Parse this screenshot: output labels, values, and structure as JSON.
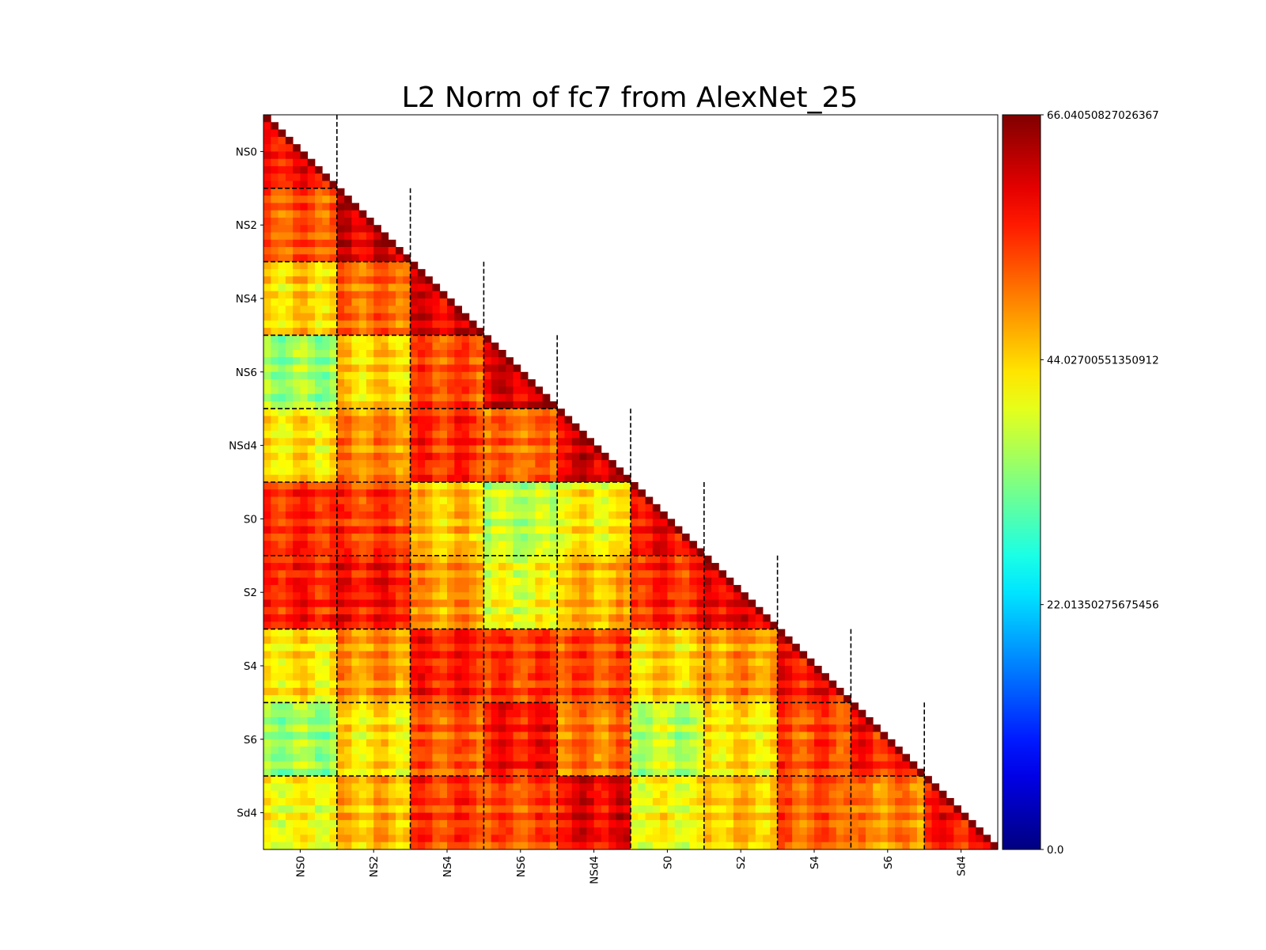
{
  "chart_data": {
    "type": "heatmap",
    "title": "L2 Norm of fc7 from AlexNet_25",
    "layout": "lower-triangular",
    "cells_per_group": 10,
    "groups": [
      "NS0",
      "NS2",
      "NS4",
      "NS6",
      "NSd4",
      "S0",
      "S2",
      "S4",
      "S6",
      "Sd4"
    ],
    "block_values": [
      [
        57
      ],
      [
        52,
        60
      ],
      [
        44,
        51,
        59
      ],
      [
        35,
        44,
        53,
        60
      ],
      [
        43,
        49,
        55,
        51,
        60
      ],
      [
        55,
        54,
        45,
        37,
        42,
        58
      ],
      [
        56,
        57,
        48,
        40,
        46,
        55,
        59
      ],
      [
        43,
        48,
        56,
        54,
        53,
        44,
        48,
        57
      ],
      [
        35,
        43,
        52,
        57,
        50,
        37,
        43,
        53,
        56
      ],
      [
        41,
        46,
        54,
        53,
        59,
        41,
        45,
        52,
        49,
        57
      ]
    ],
    "diagonal_value": 66.04,
    "colorbar": {
      "colormap": "jet",
      "min": 0.0,
      "max": 66.04050827026367,
      "ticks": [
        "0.0",
        "22.01350275675456",
        "44.02700551350912",
        "66.04050827026367"
      ]
    },
    "group_dividers": "dashed",
    "x_tick_rotation": 90
  }
}
